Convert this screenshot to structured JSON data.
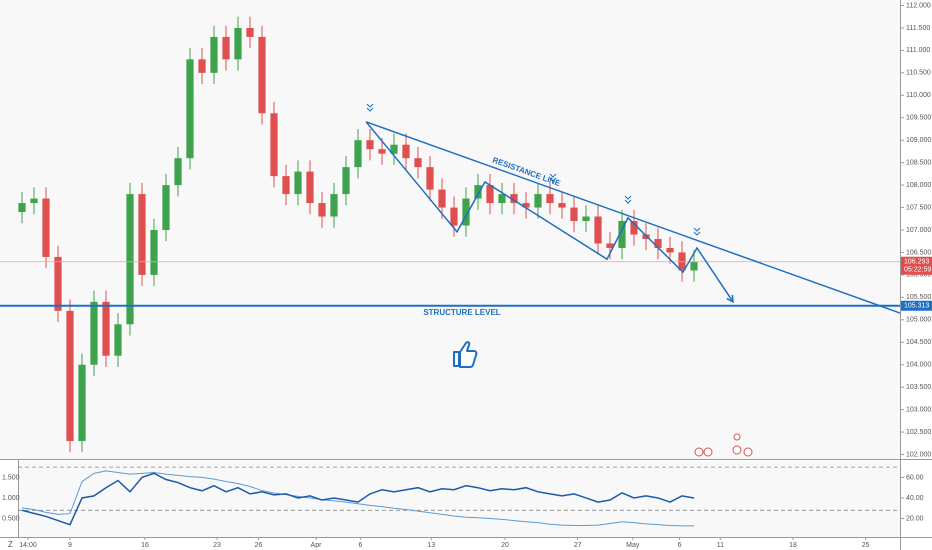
{
  "chart_data": [
    {
      "type": "candlestick",
      "up_color": "#3fa34d",
      "down_color": "#e04f4f",
      "xlim": [
        -1.833,
        73.167
      ],
      "ylim": [
        101.9,
        112.1
      ],
      "xticks": [
        {
          "value": 0.5,
          "label": "14:00"
        },
        {
          "value": 4,
          "label": "9"
        },
        {
          "value": 10.25,
          "label": "16"
        },
        {
          "value": 16.25,
          "label": "23"
        },
        {
          "value": 19.7,
          "label": "26"
        },
        {
          "value": 24.5,
          "label": "Apr"
        },
        {
          "value": 28.2,
          "label": "6"
        },
        {
          "value": 34.1,
          "label": "13"
        },
        {
          "value": 40.25,
          "label": "20"
        },
        {
          "value": 46.3,
          "label": "27"
        },
        {
          "value": 50.9,
          "label": "May"
        },
        {
          "value": 54.8,
          "label": "6"
        },
        {
          "value": 58.2,
          "label": "11"
        },
        {
          "value": 64.25,
          "label": "18"
        },
        {
          "value": 70.3,
          "label": "25"
        }
      ],
      "yticks": [
        {
          "value": 102,
          "label": "102.000"
        },
        {
          "value": 102.5,
          "label": "102.500"
        },
        {
          "value": 103,
          "label": "103.000"
        },
        {
          "value": 103.5,
          "label": "103.500"
        },
        {
          "value": 104,
          "label": "104.000"
        },
        {
          "value": 104.5,
          "label": "104.500"
        },
        {
          "value": 105,
          "label": "105.000"
        },
        {
          "value": 105.5,
          "label": "105.500"
        },
        {
          "value": 106,
          "label": "106.000"
        },
        {
          "value": 106.5,
          "label": "106.500"
        },
        {
          "value": 107,
          "label": "107.000"
        },
        {
          "value": 107.5,
          "label": "107.500"
        },
        {
          "value": 108,
          "label": "108.000"
        },
        {
          "value": 108.5,
          "label": "108.500"
        },
        {
          "value": 109,
          "label": "109.000"
        },
        {
          "value": 109.5,
          "label": "109.500"
        },
        {
          "value": 110,
          "label": "110.000"
        },
        {
          "value": 110.5,
          "label": "110.500"
        },
        {
          "value": 111,
          "label": "111.000"
        },
        {
          "value": 111.5,
          "label": "111.500"
        },
        {
          "value": 112,
          "label": "112.000"
        }
      ],
      "open": [
        107.4,
        107.6,
        107.7,
        106.4,
        105.2,
        102.3,
        104.0,
        105.4,
        104.2,
        104.9,
        107.8,
        106.0,
        107.0,
        108.0,
        108.6,
        110.8,
        110.5,
        111.3,
        110.8,
        111.5,
        111.3,
        109.6,
        108.2,
        107.8,
        108.3,
        107.6,
        107.3,
        107.8,
        108.4,
        109.0,
        108.8,
        108.7,
        108.9,
        108.6,
        108.4,
        107.9,
        107.5,
        107.1,
        107.7,
        108.0,
        107.6,
        107.8,
        107.6,
        107.5,
        107.8,
        107.6,
        107.5,
        107.2,
        107.3,
        106.7,
        106.6,
        107.2,
        106.9,
        106.8,
        106.6,
        106.5,
        106.1
      ],
      "high": [
        107.85,
        107.95,
        107.95,
        106.65,
        105.45,
        104.25,
        105.65,
        105.65,
        105.15,
        108.05,
        108.05,
        107.25,
        108.25,
        108.85,
        111.05,
        111.05,
        111.55,
        111.55,
        111.75,
        111.75,
        111.55,
        109.85,
        108.45,
        108.55,
        108.55,
        107.85,
        108.05,
        108.65,
        109.25,
        109.25,
        109.05,
        109.15,
        109.15,
        108.85,
        108.65,
        108.15,
        107.75,
        107.95,
        108.25,
        108.25,
        108.05,
        108.05,
        107.85,
        108.05,
        108.05,
        107.85,
        107.75,
        107.55,
        107.55,
        106.95,
        107.45,
        107.45,
        107.15,
        107.05,
        106.85,
        106.75,
        106.55
      ],
      "low": [
        107.15,
        107.35,
        106.15,
        104.95,
        102.05,
        102.05,
        103.75,
        103.95,
        103.95,
        104.65,
        105.75,
        105.75,
        106.75,
        107.75,
        108.35,
        110.25,
        110.25,
        110.55,
        110.55,
        111.05,
        109.35,
        107.95,
        107.55,
        107.55,
        107.35,
        107.05,
        107.05,
        107.55,
        108.15,
        108.55,
        108.45,
        108.45,
        108.35,
        108.15,
        107.65,
        107.25,
        106.85,
        106.85,
        107.45,
        107.35,
        107.35,
        107.35,
        107.25,
        107.25,
        107.35,
        107.25,
        106.95,
        106.95,
        106.45,
        106.35,
        106.35,
        106.65,
        106.55,
        106.35,
        106.25,
        105.85,
        105.85
      ],
      "close": [
        107.6,
        107.7,
        106.4,
        105.2,
        102.3,
        104.0,
        105.4,
        104.2,
        104.9,
        107.8,
        106.0,
        107.0,
        108.0,
        108.6,
        110.8,
        110.5,
        111.3,
        110.8,
        111.5,
        111.3,
        109.6,
        108.2,
        107.8,
        108.3,
        107.6,
        107.3,
        107.8,
        108.4,
        109.0,
        108.8,
        108.7,
        108.9,
        108.6,
        108.4,
        107.9,
        107.5,
        107.1,
        107.7,
        108.0,
        107.6,
        107.8,
        107.6,
        107.5,
        107.8,
        107.6,
        107.5,
        107.2,
        107.3,
        106.7,
        106.6,
        107.2,
        106.9,
        106.8,
        106.6,
        106.5,
        106.1,
        106.3
      ],
      "last_price": {
        "value": 106.293,
        "label": "106.293",
        "countdown": "05:22:59"
      },
      "structure_level": {
        "value": 105.313,
        "label": "105.313",
        "text": "STRUCTURE LEVEL"
      },
      "resistance_line": {
        "text": "RESISTANCE LINE",
        "x": [
          28.67,
          73.17
        ],
        "y": [
          109.41,
          105.15
        ]
      },
      "zigzag": {
        "x": [
          28.67,
          36.25,
          38.58,
          48.75,
          50.5,
          55.08,
          56.25,
          59.25
        ],
        "y": [
          109.41,
          106.96,
          108.07,
          106.35,
          107.27,
          106.06,
          106.6,
          105.4
        ]
      },
      "line_color": "#1e6fc2"
    },
    {
      "type": "line",
      "xlim": [
        -1.833,
        73.167
      ],
      "ylim": [
        0.05,
        1.9
      ],
      "y2lim": [
        2,
        76
      ],
      "yticks": [
        {
          "value": 0.5,
          "label": "0.500"
        },
        {
          "value": 1,
          "label": "1.000"
        },
        {
          "value": 1.5,
          "label": "1.500"
        }
      ],
      "y2ticks": [
        {
          "value": 20,
          "label": "20.00"
        },
        {
          "value": 40,
          "label": "40.00"
        },
        {
          "value": 60,
          "label": "60.00"
        }
      ],
      "levels": [
        70,
        28
      ],
      "series": [
        {
          "color": "#5b9bd5",
          "values": [
            0.76,
            0.72,
            0.65,
            0.6,
            0.62,
            1.4,
            1.6,
            1.66,
            1.62,
            1.58,
            1.6,
            1.62,
            1.58,
            1.55,
            1.52,
            1.5,
            1.46,
            1.4,
            1.35,
            1.28,
            1.18,
            1.12,
            1.08,
            1.04,
            1.0,
            0.96,
            0.93,
            0.9,
            0.86,
            0.82,
            0.79,
            0.75,
            0.72,
            0.68,
            0.64,
            0.6,
            0.56,
            0.53,
            0.52,
            0.5,
            0.48,
            0.45,
            0.42,
            0.4,
            0.36,
            0.34,
            0.33,
            0.33,
            0.34,
            0.38,
            0.42,
            0.4,
            0.37,
            0.35,
            0.33,
            0.32,
            0.32
          ]
        },
        {
          "color": "#1a5aa8",
          "axis": "y2",
          "values": [
            28,
            25,
            22,
            18,
            14,
            40,
            42,
            50,
            57,
            46,
            60,
            64,
            58,
            55,
            50,
            47,
            52,
            46,
            50,
            44,
            46,
            43,
            44,
            40,
            42,
            38,
            40,
            38,
            36,
            44,
            48,
            46,
            48,
            50,
            46,
            49,
            48,
            52,
            50,
            47,
            49,
            48,
            50,
            46,
            44,
            42,
            44,
            40,
            36,
            38,
            45,
            40,
            42,
            40,
            36,
            42,
            40
          ]
        }
      ]
    }
  ]
}
